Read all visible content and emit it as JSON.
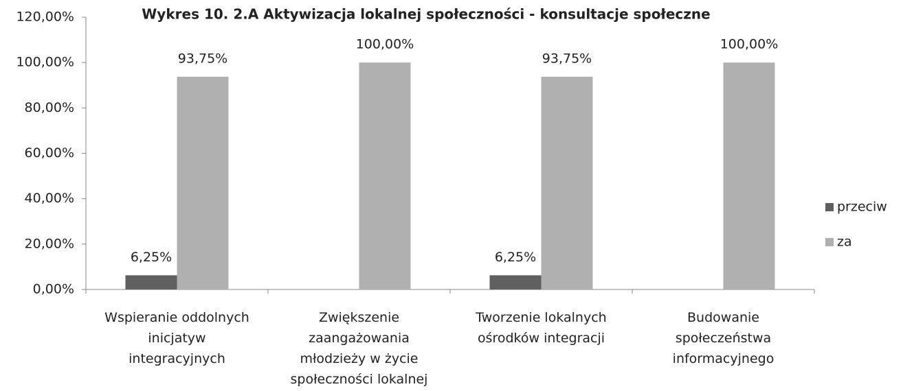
{
  "chart_data": {
    "type": "bar",
    "title": "Wykres 10. 2.A Aktywizacja lokalnej społeczności - konsultacje społeczne",
    "categories": [
      "Wspieranie oddolnych inicjatyw integracyjnych",
      "Zwiększenie zaangażowania młodzieży w życie społeczności lokalnej",
      "Tworzenie lokalnych ośrodków integracji",
      "Budowanie społeczeństwa informacyjnego"
    ],
    "series": [
      {
        "name": "przeciw",
        "color": "#606060",
        "values": [
          6.25,
          0,
          6.25,
          0
        ],
        "value_labels": [
          "6,25%",
          null,
          "6,25%",
          null
        ]
      },
      {
        "name": "za",
        "color": "#b0b0b0",
        "values": [
          93.75,
          100,
          93.75,
          100
        ],
        "value_labels": [
          "93,75%",
          "100,00%",
          "93,75%",
          "100,00%"
        ]
      }
    ],
    "ylim": [
      0,
      120
    ],
    "yticks": [
      {
        "value": 0,
        "label": "0,00%"
      },
      {
        "value": 20,
        "label": "20,00%"
      },
      {
        "value": 40,
        "label": "40,00%"
      },
      {
        "value": 60,
        "label": "60,00%"
      },
      {
        "value": 80,
        "label": "80,00%"
      },
      {
        "value": 100,
        "label": "100,00%"
      },
      {
        "value": 120,
        "label": "120,00%"
      }
    ],
    "grid": false,
    "legend": "right"
  }
}
